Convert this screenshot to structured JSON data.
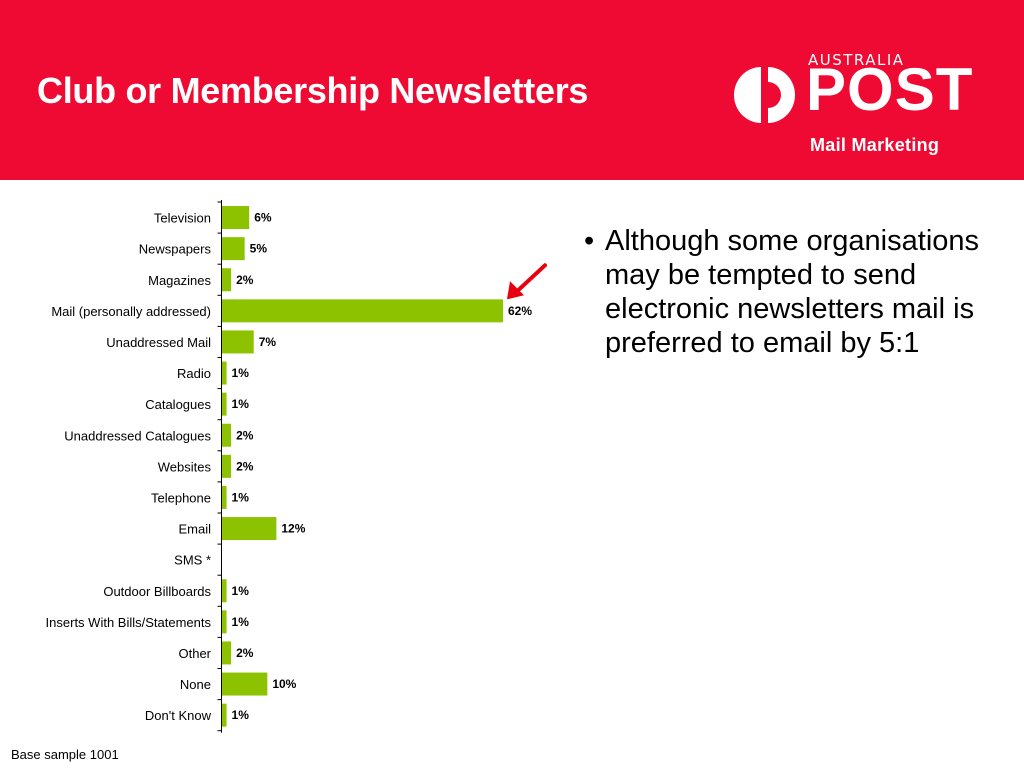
{
  "header": {
    "title": "Club or Membership Newsletters",
    "logo": {
      "country": "AUSTRALIA",
      "brand": "POST",
      "division": "Mail Marketing"
    }
  },
  "chart_data": {
    "type": "bar",
    "orientation": "horizontal",
    "categories": [
      "Television",
      "Newspapers",
      "Magazines",
      "Mail (personally addressed)",
      "Unaddressed Mail",
      "Radio",
      "Catalogues",
      "Unaddressed Catalogues",
      "Websites",
      "Telephone",
      "Email",
      "SMS *",
      "Outdoor Billboards",
      "Inserts With Bills/Statements",
      "Other",
      "None",
      "Don't Know"
    ],
    "values": [
      6,
      5,
      2,
      62,
      7,
      1,
      1,
      2,
      2,
      1,
      12,
      null,
      1,
      1,
      2,
      10,
      1
    ],
    "labels": [
      "6%",
      "5%",
      "2%",
      "62%",
      "7%",
      "1%",
      "1%",
      "2%",
      "2%",
      "1%",
      "12%",
      "",
      "1%",
      "1%",
      "2%",
      "10%",
      "1%"
    ],
    "unit": "%",
    "xlim": [
      0,
      70
    ],
    "highlight_category": "Mail (personally addressed)",
    "bar_color": "#8dc200",
    "arrow_color": "#e8000e",
    "grid": false,
    "legend": "none"
  },
  "bullet": {
    "symbol": "•",
    "text": "Although some organisations may be tempted to send electronic newsletters mail is preferred to email by 5:1"
  },
  "footnote": "Base sample 1001"
}
